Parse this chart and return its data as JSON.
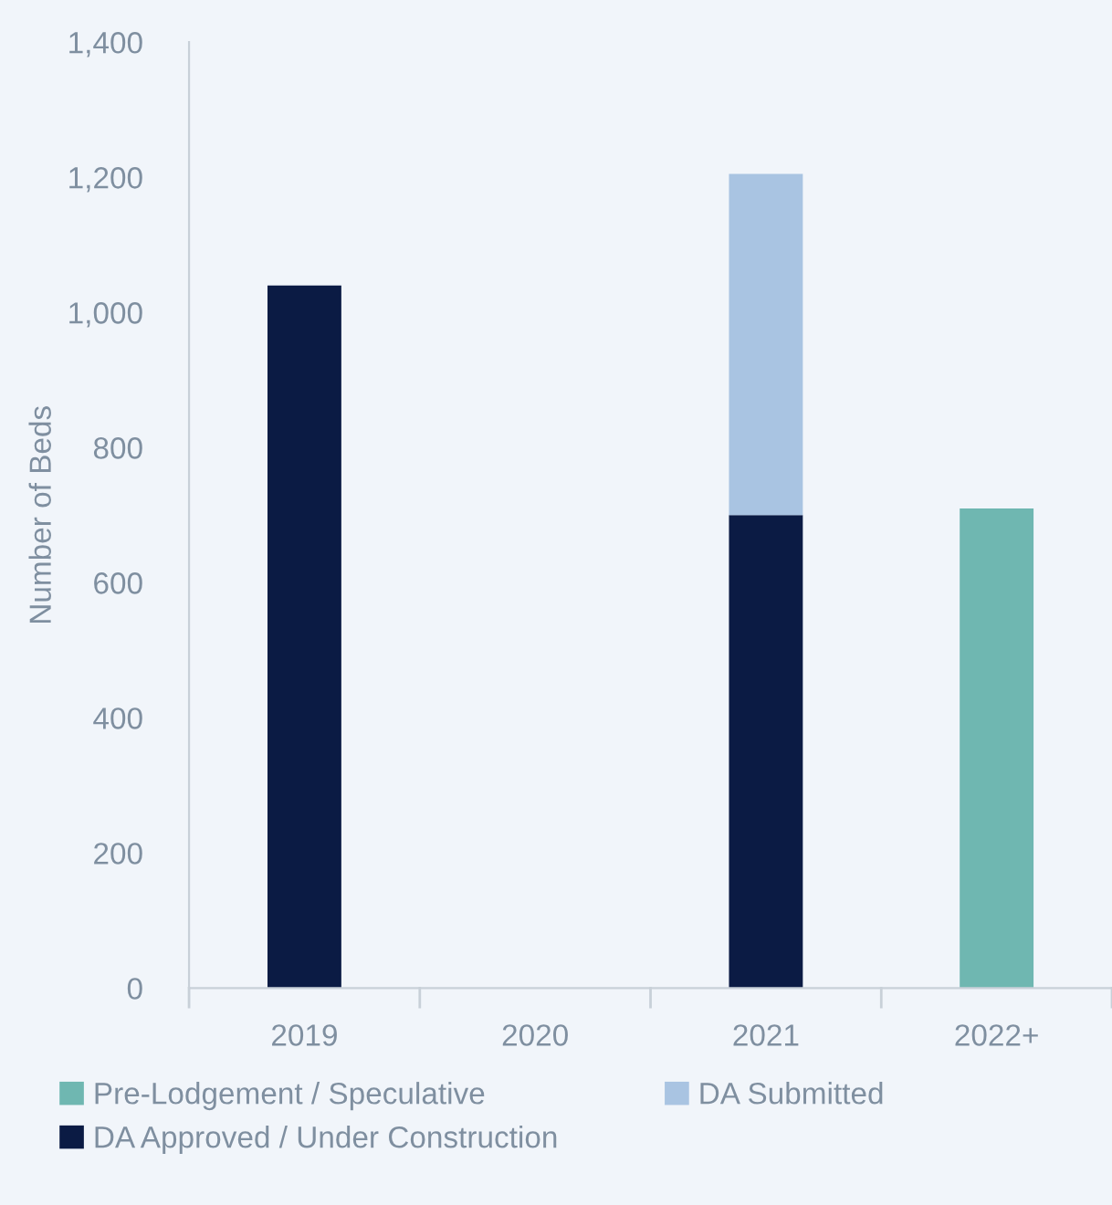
{
  "chart_data": {
    "type": "bar",
    "stacked": true,
    "ylabel": "Number of Beds",
    "categories": [
      "2019",
      "2020",
      "2021",
      "2022+"
    ],
    "series": [
      {
        "name": "DA Approved / Under Construction",
        "color": "#0b1b44",
        "values": [
          1040,
          0,
          700,
          0
        ]
      },
      {
        "name": "DA Submitted",
        "color": "#a9c4e2",
        "values": [
          0,
          0,
          505,
          0
        ]
      },
      {
        "name": "Pre-Lodgement / Speculative",
        "color": "#6fb7b1",
        "values": [
          0,
          0,
          0,
          710
        ]
      }
    ],
    "ylim": [
      0,
      1400
    ],
    "yticks": [
      0,
      {
        "value": 200,
        "label": "200"
      },
      {
        "value": 400,
        "label": "400"
      },
      {
        "value": 600,
        "label": "600"
      },
      {
        "value": 800,
        "label": "800"
      },
      {
        "value": 1000,
        "label": "1,000"
      },
      {
        "value": 1200,
        "label": "1,200"
      },
      {
        "value": 1400,
        "label": "1,400"
      }
    ],
    "grid": false,
    "legend": "bottom"
  }
}
